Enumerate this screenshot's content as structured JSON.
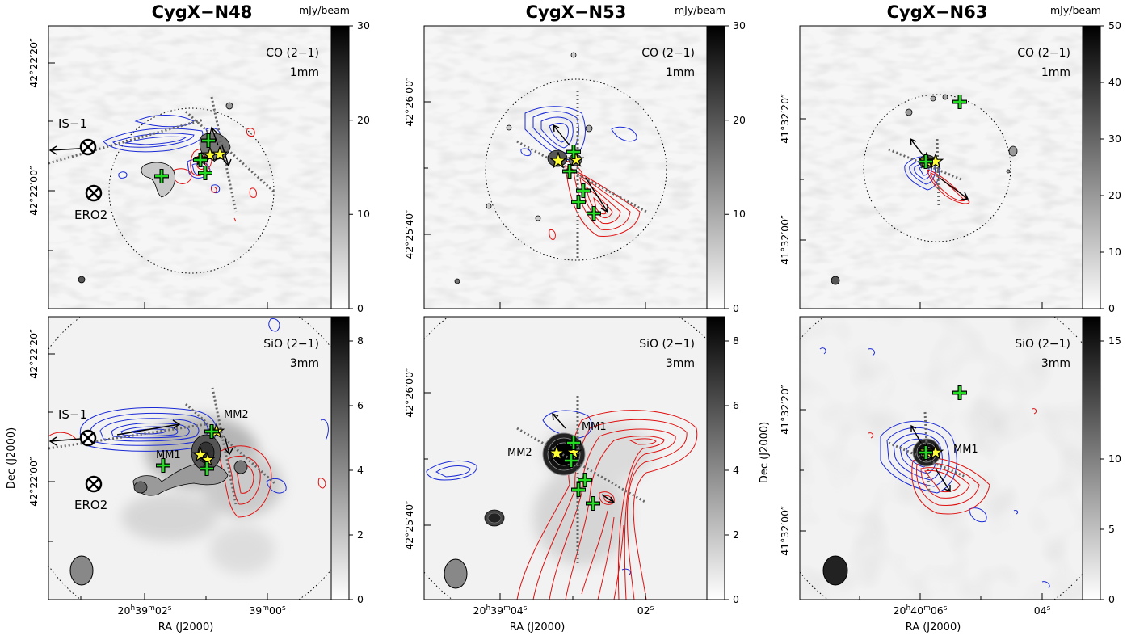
{
  "figure": {
    "panels": [
      {
        "title": "CygX−N48",
        "unit": "mJy/beam",
        "top": {
          "tracer": "CO (2−1)",
          "band": "1mm",
          "colorbar_ticks": [
            "30",
            "20",
            "10",
            "0"
          ],
          "dec_ticks": [
            "42°22′20″",
            "42°22′00″"
          ],
          "labels": [
            "IS−1",
            "ERO2"
          ]
        },
        "bottom": {
          "tracer": "SiO (2−1)",
          "band": "3mm",
          "colorbar_ticks": [
            "8",
            "6",
            "4",
            "2",
            "0"
          ],
          "dec_ticks": [
            "42°22′20″",
            "42°22′00″"
          ],
          "labels": [
            "IS−1",
            "ERO2",
            "MM1",
            "MM2"
          ],
          "ra_ticks": [
            "20h39m02s",
            "39m00s"
          ]
        }
      },
      {
        "title": "CygX−N53",
        "unit": "mJy/beam",
        "top": {
          "tracer": "CO (2−1)",
          "band": "1mm",
          "colorbar_ticks": [
            "30",
            "20",
            "10",
            "0"
          ],
          "dec_ticks": [
            "42°26′00″",
            "42°25′40″"
          ]
        },
        "bottom": {
          "tracer": "SiO (2−1)",
          "band": "3mm",
          "colorbar_ticks": [
            "8",
            "6",
            "4",
            "2",
            "0"
          ],
          "dec_ticks": [
            "42°26′00″",
            "42°25′40″"
          ],
          "labels": [
            "MM1",
            "MM2"
          ],
          "ra_ticks": [
            "20h39m04s",
            "02s"
          ]
        }
      },
      {
        "title": "CygX−N63",
        "unit": "mJy/beam",
        "top": {
          "tracer": "CO (2−1)",
          "band": "1mm",
          "colorbar_ticks": [
            "50",
            "40",
            "30",
            "20",
            "10",
            "0"
          ],
          "dec_ticks": [
            "41°32′20″",
            "41°32′00″"
          ]
        },
        "bottom": {
          "tracer": "SiO (2−1)",
          "band": "3mm",
          "colorbar_ticks": [
            "15",
            "10",
            "5",
            "0"
          ],
          "dec_ticks": [
            "41°32′20″",
            "41°32′00″"
          ],
          "labels": [
            "MM1"
          ],
          "ra_ticks": [
            "20h40m06s",
            "04s"
          ]
        }
      }
    ],
    "axis_labels": {
      "dec": "Dec (J2000)",
      "ra": "RA (J2000)"
    },
    "colors": {
      "blue_contours": "#1a2ad6",
      "red_contours": "#e01010",
      "star_fill": "#ffff33",
      "cross": "#22dd22",
      "outflow_axes": "#666666"
    }
  }
}
